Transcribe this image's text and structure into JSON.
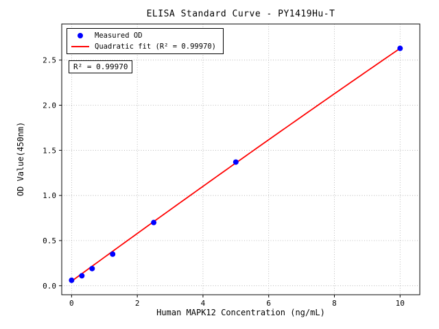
{
  "chart_data": {
    "type": "scatter",
    "title": "ELISA Standard Curve - PY1419Hu-T",
    "xlabel": "Human MAPK12 Concentration (ng/mL)",
    "ylabel": "OD Value(450nm)",
    "xlim": [
      -0.3,
      10.6
    ],
    "ylim": [
      -0.1,
      2.9
    ],
    "x_ticks": [
      0,
      2,
      4,
      6,
      8,
      10
    ],
    "y_ticks": [
      0.0,
      0.5,
      1.0,
      1.5,
      2.0,
      2.5
    ],
    "grid": "dotted",
    "grid_color": "#aaaaaa",
    "legend_position": "upper-left",
    "annotation": "R² = 0.99970",
    "series": [
      {
        "name": "Measured OD",
        "type": "scatter",
        "color": "#0000ff",
        "x": [
          0,
          0.3125,
          0.625,
          1.25,
          2.5,
          5,
          10
        ],
        "y": [
          0.06,
          0.11,
          0.19,
          0.35,
          0.7,
          1.37,
          2.63
        ]
      },
      {
        "name": "Quadratic fit (R² = 0.99970)",
        "type": "line",
        "color": "#ff0000",
        "fit": {
          "a": 0.05,
          "b": 0.266,
          "c": -0.0008
        },
        "x_range": [
          0,
          10
        ]
      }
    ]
  }
}
